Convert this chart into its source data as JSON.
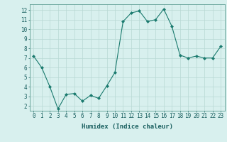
{
  "x": [
    0,
    1,
    2,
    3,
    4,
    5,
    6,
    7,
    8,
    9,
    10,
    11,
    12,
    13,
    14,
    15,
    16,
    17,
    18,
    19,
    20,
    21,
    22,
    23
  ],
  "y": [
    7.2,
    6.0,
    4.0,
    1.7,
    3.2,
    3.3,
    2.5,
    3.1,
    2.8,
    4.1,
    5.5,
    10.8,
    11.7,
    11.9,
    10.8,
    11.0,
    12.1,
    10.3,
    7.3,
    7.0,
    7.2,
    7.0,
    7.0,
    8.2
  ],
  "line_color": "#1a7a6e",
  "marker": "D",
  "marker_size": 2.0,
  "bg_color": "#d8f0ee",
  "grid_color": "#b8d8d4",
  "axis_color": "#5a9a90",
  "tick_color": "#1a6060",
  "xlabel": "Humidex (Indice chaleur)",
  "xlabel_fontsize": 6.5,
  "xlim": [
    -0.5,
    23.5
  ],
  "ylim": [
    1.5,
    12.6
  ],
  "yticks": [
    2,
    3,
    4,
    5,
    6,
    7,
    8,
    9,
    10,
    11,
    12
  ],
  "xticks": [
    0,
    1,
    2,
    3,
    4,
    5,
    6,
    7,
    8,
    9,
    10,
    11,
    12,
    13,
    14,
    15,
    16,
    17,
    18,
    19,
    20,
    21,
    22,
    23
  ],
  "label_fontsize": 5.5
}
